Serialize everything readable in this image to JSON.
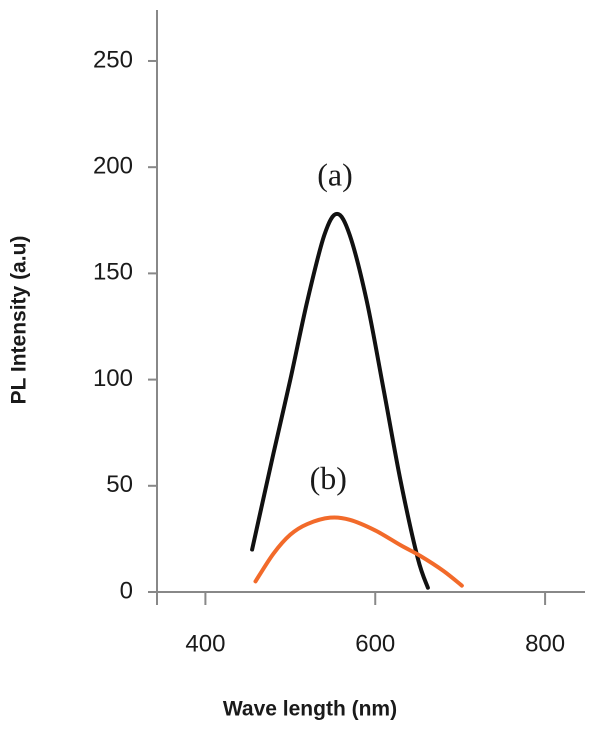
{
  "chart_data": {
    "type": "line",
    "xlabel": "Wave length (nm)",
    "ylabel": "PL Intensity (a.u)",
    "xlim": [
      343,
      847
    ],
    "ylim": [
      0,
      274
    ],
    "xticks": [
      400,
      600,
      800
    ],
    "yticks": [
      0,
      50,
      100,
      150,
      200,
      250
    ],
    "series": [
      {
        "name": "(a)",
        "color": "#111111",
        "x": [
          455,
          480,
          500,
          520,
          540,
          555,
          570,
          590,
          610,
          630,
          650,
          662
        ],
        "values": [
          20,
          65,
          100,
          137,
          168,
          178,
          168,
          137,
          95,
          52,
          16,
          2
        ]
      },
      {
        "name": "(b)",
        "color": "#f26a2a",
        "x": [
          459,
          480,
          500,
          520,
          547,
          570,
          600,
          630,
          653,
          680,
          702
        ],
        "values": [
          5,
          18,
          27,
          32,
          35,
          34,
          29,
          22,
          17,
          10,
          3
        ]
      }
    ]
  }
}
